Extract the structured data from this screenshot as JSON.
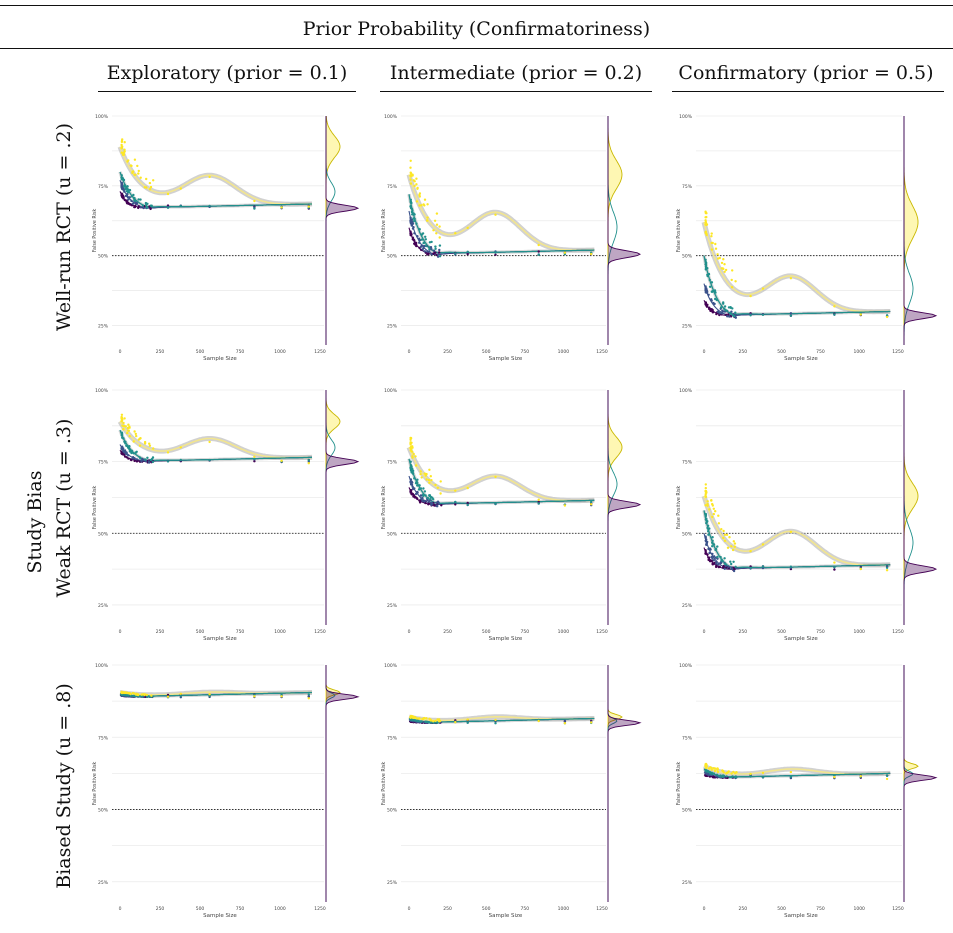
{
  "header": {
    "prior_label": "Prior Probability (Confirmatoriness)",
    "columns": [
      "Exploratory (prior = 0.1)",
      "Intermediate (prior = 0.2)",
      "Confirmatory (prior = 0.5)"
    ],
    "bias_label": "Study Bias",
    "rows": [
      "Well-run RCT (u = .2)",
      "Weak RCT (u = .3)",
      "Biased Study (u = .8)"
    ]
  },
  "colors": {
    "yellow": "#FDE725",
    "teal": "#21908C",
    "navy": "#3B528B",
    "purple": "#440154",
    "smooth": "#F2E58F",
    "band": "#BDBDBD"
  },
  "chart_data": [
    {
      "type": "scatter",
      "row": 0,
      "col": 0,
      "xlabel": "Sample Size",
      "ylabel": "False Positive Risk",
      "ylim": [
        18,
        100
      ],
      "xlim": [
        0,
        1250
      ],
      "baseline": 50,
      "floor": 67,
      "start": {
        "yellow": 89,
        "teal": 80,
        "navy": 77,
        "purple": 73
      },
      "hump": 79,
      "x_ticks": [
        "0",
        "250",
        "500",
        "750",
        "1000",
        "1250"
      ],
      "y_ticks": [
        "25%",
        "50%",
        "75%",
        "100%"
      ]
    },
    {
      "type": "scatter",
      "row": 0,
      "col": 1,
      "xlabel": "Sample Size",
      "ylabel": "False Positive Risk",
      "ylim": [
        18,
        100
      ],
      "xlim": [
        0,
        1250
      ],
      "baseline": 50,
      "floor": 50.5,
      "start": {
        "yellow": 79,
        "teal": 72,
        "navy": 66,
        "purple": 60
      },
      "hump": 66,
      "x_ticks": [
        "0",
        "250",
        "500",
        "750",
        "1000",
        "1250"
      ],
      "y_ticks": [
        "25%",
        "50%",
        "75%",
        "100%"
      ]
    },
    {
      "type": "scatter",
      "row": 0,
      "col": 2,
      "xlabel": "Sample Size",
      "ylabel": "False Positive Risk",
      "ylim": [
        18,
        100
      ],
      "xlim": [
        0,
        1250
      ],
      "baseline": 50,
      "floor": 28.5,
      "start": {
        "yellow": 62,
        "teal": 50,
        "navy": 40,
        "purple": 34
      },
      "hump": 43,
      "x_ticks": [
        "0",
        "250",
        "500",
        "750",
        "1000",
        "1250"
      ],
      "y_ticks": [
        "25%",
        "50%",
        "75%",
        "100%"
      ]
    },
    {
      "type": "scatter",
      "row": 1,
      "col": 0,
      "xlabel": "Sample Size",
      "ylabel": "False Positive Risk",
      "ylim": [
        18,
        100
      ],
      "xlim": [
        0,
        1250
      ],
      "baseline": 50,
      "floor": 75,
      "start": {
        "yellow": 89,
        "teal": 86,
        "navy": 81,
        "purple": 79
      },
      "hump": 83,
      "x_ticks": [
        "0",
        "250",
        "500",
        "750",
        "1000",
        "1250"
      ],
      "y_ticks": [
        "25%",
        "50%",
        "75%",
        "100%"
      ]
    },
    {
      "type": "scatter",
      "row": 1,
      "col": 1,
      "xlabel": "Sample Size",
      "ylabel": "False Positive Risk",
      "ylim": [
        18,
        100
      ],
      "xlim": [
        0,
        1250
      ],
      "baseline": 50,
      "floor": 60,
      "start": {
        "yellow": 80,
        "teal": 76,
        "navy": 70,
        "purple": 66
      },
      "hump": 70,
      "x_ticks": [
        "0",
        "250",
        "500",
        "750",
        "1000",
        "1250"
      ],
      "y_ticks": [
        "25%",
        "50%",
        "75%",
        "100%"
      ]
    },
    {
      "type": "scatter",
      "row": 1,
      "col": 2,
      "xlabel": "Sample Size",
      "ylabel": "False Positive Risk",
      "ylim": [
        18,
        100
      ],
      "xlim": [
        0,
        1250
      ],
      "baseline": 50,
      "floor": 37.5,
      "start": {
        "yellow": 63,
        "teal": 58,
        "navy": 50,
        "purple": 45
      },
      "hump": 51,
      "x_ticks": [
        "0",
        "250",
        "500",
        "750",
        "1000",
        "1250"
      ],
      "y_ticks": [
        "25%",
        "50%",
        "75%",
        "100%"
      ]
    },
    {
      "type": "scatter",
      "row": 2,
      "col": 0,
      "xlabel": "Sample Size",
      "ylabel": "False Positive Risk",
      "ylim": [
        18,
        100
      ],
      "xlim": [
        0,
        1250
      ],
      "baseline": 50,
      "floor": 89,
      "start": {
        "yellow": 90.5,
        "teal": 90,
        "navy": 89.5,
        "purple": 89.5
      },
      "hump": 90,
      "x_ticks": [
        "0",
        "250",
        "500",
        "750",
        "1000",
        "1250"
      ],
      "y_ticks": [
        "25%",
        "50%",
        "75%",
        "100%"
      ]
    },
    {
      "type": "scatter",
      "row": 2,
      "col": 1,
      "xlabel": "Sample Size",
      "ylabel": "False Positive Risk",
      "ylim": [
        18,
        100
      ],
      "xlim": [
        0,
        1250
      ],
      "baseline": 50,
      "floor": 80,
      "start": {
        "yellow": 82,
        "teal": 81.5,
        "navy": 81,
        "purple": 80.5
      },
      "hump": 81.5,
      "x_ticks": [
        "0",
        "250",
        "500",
        "750",
        "1000",
        "1250"
      ],
      "y_ticks": [
        "25%",
        "50%",
        "75%",
        "100%"
      ]
    },
    {
      "type": "scatter",
      "row": 2,
      "col": 2,
      "xlabel": "Sample Size",
      "ylabel": "False Positive Risk",
      "ylim": [
        18,
        100
      ],
      "xlim": [
        0,
        1250
      ],
      "baseline": 50,
      "floor": 61,
      "start": {
        "yellow": 65,
        "teal": 64,
        "navy": 63,
        "purple": 62
      },
      "hump": 63.5,
      "x_ticks": [
        "0",
        "250",
        "500",
        "750",
        "1000",
        "1250"
      ],
      "y_ticks": [
        "25%",
        "50%",
        "75%",
        "100%"
      ]
    }
  ]
}
